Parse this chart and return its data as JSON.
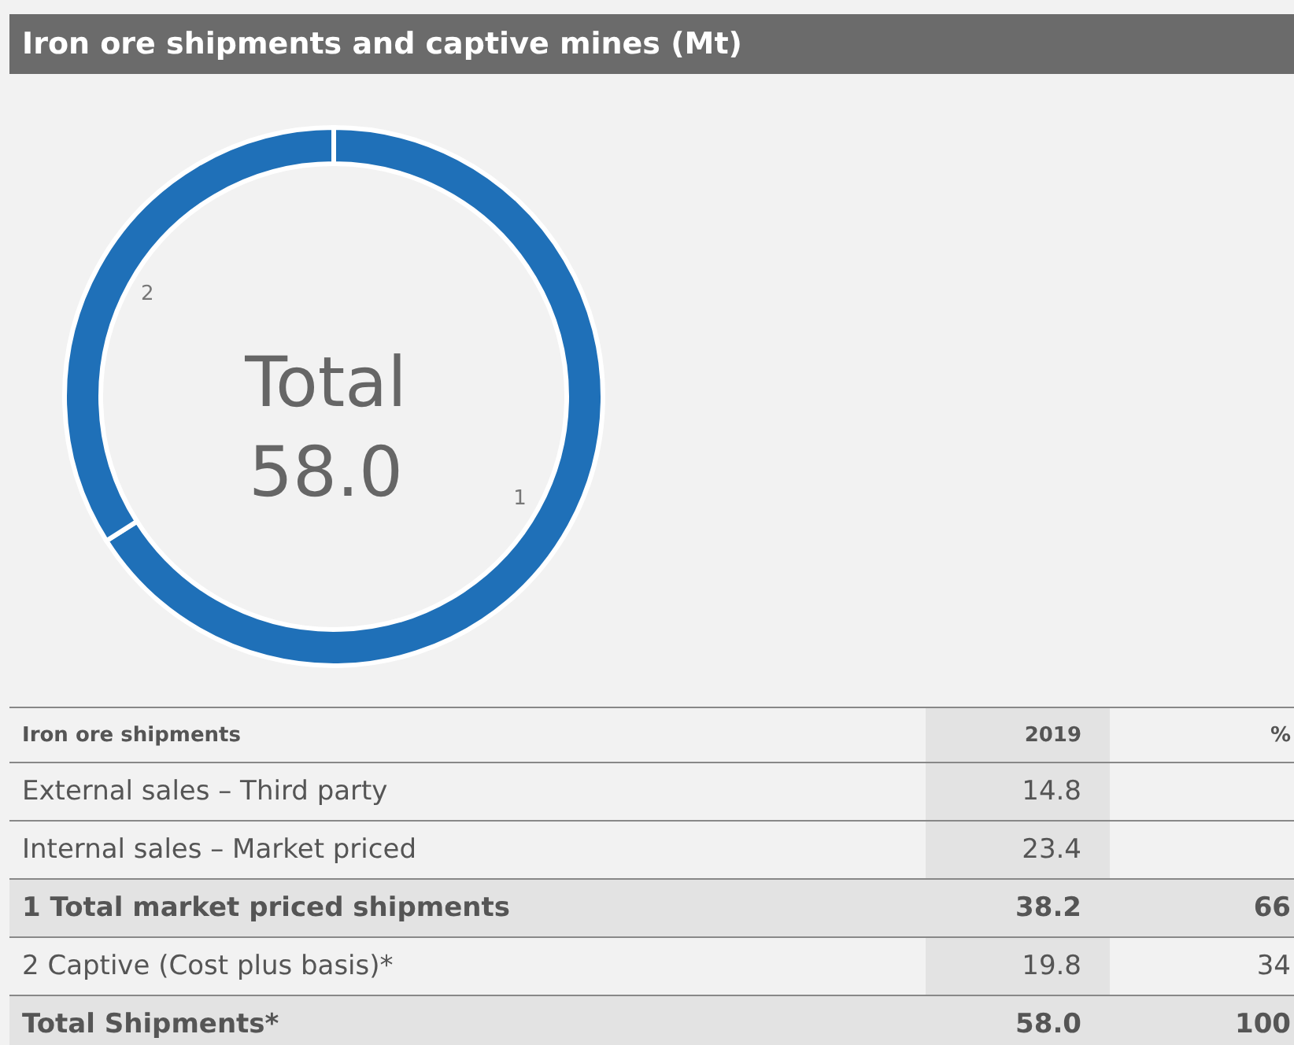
{
  "chart_data": {
    "type": "donut",
    "title": "Iron ore shipments and captive mines (Mt)",
    "categories": [
      "1",
      "2"
    ],
    "values": [
      66,
      34
    ],
    "colors": [
      "#1f70b8",
      "#1f70b8"
    ],
    "annotations": [
      "Total",
      "58.0",
      "Iron ore shipments",
      "2019",
      "%",
      "External sales – Third party",
      "14.8",
      "Internal sales – Market priced",
      "23.4",
      "1 Total market priced shipments",
      "38.2",
      "66",
      "2 Captive (Cost plus basis)*",
      "19.8",
      "34",
      "Total Shipments*",
      "58.0",
      "100"
    ]
  }
}
